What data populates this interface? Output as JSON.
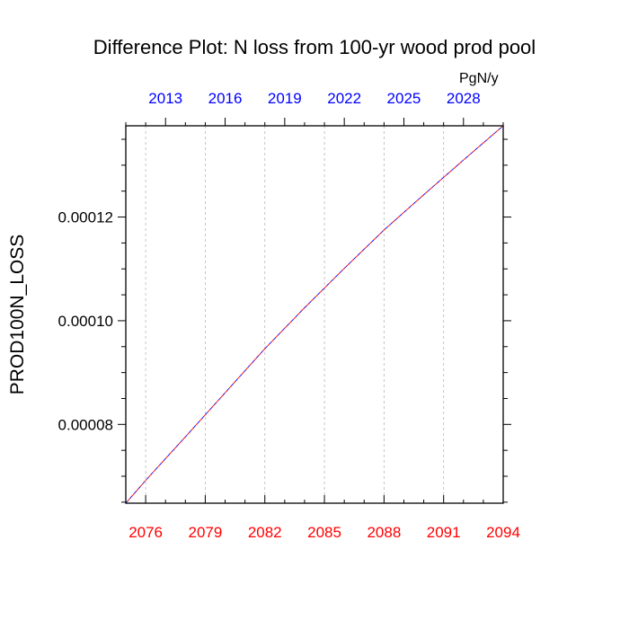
{
  "title": "Difference Plot: N loss from 100-yr wood prod pool",
  "ylabel": "PROD100N_LOSS",
  "units": "PgN/y",
  "chart_data": {
    "type": "line",
    "title": "Difference Plot: N loss from 100-yr wood prod pool",
    "xlabel": "",
    "ylabel": "PROD100N_LOSS",
    "units_label": "PgN/y",
    "bottom_axis": {
      "range": [
        2075,
        2094
      ],
      "ticks": [
        2076,
        2079,
        2082,
        2085,
        2088,
        2091,
        2094
      ],
      "color": "#ff0000"
    },
    "top_axis": {
      "range": [
        2011,
        2030
      ],
      "ticks": [
        2013,
        2016,
        2019,
        2022,
        2025,
        2028
      ],
      "color": "#0000ff"
    },
    "ylim": [
      6.48e-05,
      0.0001376
    ],
    "yticks": [
      "0.00008",
      "0.00010",
      "0.00012"
    ],
    "grid": "vertical-dashed",
    "series": [
      {
        "color": "#0000ff",
        "style": "dashed",
        "x": [
          2075,
          2076,
          2078,
          2080,
          2082,
          2084,
          2086,
          2088,
          2090,
          2092,
          2094
        ],
        "y": [
          6.48e-05,
          6.92e-05,
          7.76e-05,
          8.61e-05,
          9.46e-05,
          0.0001025,
          0.0001101,
          0.0001175,
          0.0001243,
          0.000131,
          0.0001376
        ]
      },
      {
        "color": "#ff0000",
        "style": "dashed",
        "x": [
          2075,
          2076,
          2078,
          2080,
          2082,
          2084,
          2086,
          2088,
          2090,
          2092,
          2094
        ],
        "y": [
          6.48e-05,
          6.92e-05,
          7.76e-05,
          8.61e-05,
          9.46e-05,
          0.0001025,
          0.0001101,
          0.0001175,
          0.0001243,
          0.000131,
          0.0001376
        ]
      }
    ]
  }
}
